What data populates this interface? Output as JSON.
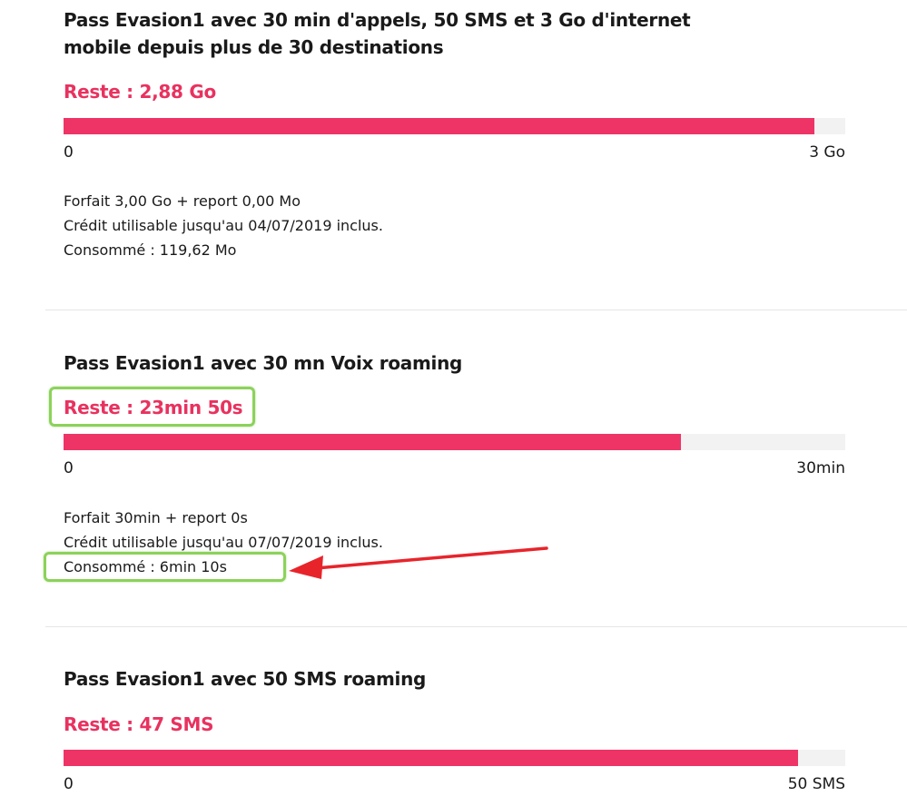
{
  "colors": {
    "accent": "#e8325f",
    "bar": "#ee3466",
    "track": "#f2f2f2",
    "highlight": "#8cd25a",
    "arrow": "#e8242b"
  },
  "passes": [
    {
      "title": "Pass Evasion1 avec 30 min d'appels, 50 SMS et 3 Go d'internet mobile depuis plus de 30 destinations",
      "remaining": "Reste : 2,88 Go",
      "progress_fraction": 0.96,
      "scale_min": "0",
      "scale_max": "3 Go",
      "details": [
        "Forfait 3,00 Go + report 0,00 Mo",
        "Crédit utilisable jusqu'au 04/07/2019 inclus.",
        "Consommé : 119,62 Mo"
      ]
    },
    {
      "title": "Pass Evasion1 avec 30 mn Voix roaming",
      "remaining": "Reste : 23min 50s",
      "progress_fraction": 0.79,
      "scale_min": "0",
      "scale_max": "30min",
      "details": [
        "Forfait 30min + report 0s",
        "Crédit utilisable jusqu'au 07/07/2019 inclus.",
        "Consommé : 6min 10s"
      ]
    },
    {
      "title": "Pass Evasion1 avec 50 SMS roaming",
      "remaining": "Reste : 47 SMS",
      "progress_fraction": 0.94,
      "scale_min": "0",
      "scale_max": "50 SMS"
    }
  ]
}
